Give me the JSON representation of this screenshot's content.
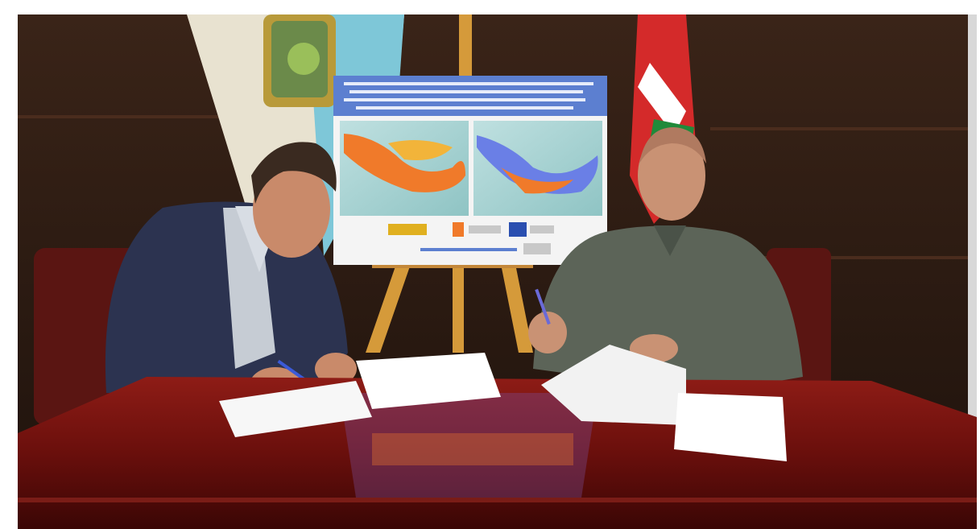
{
  "photo": {
    "subject": "signing-ceremony",
    "colors": {
      "wall": "#2a1a12",
      "table": "#7a1412",
      "poster_header": "#5c7fd0",
      "map_orange": "#f07a2a",
      "map_blue": "#6a7fe6",
      "flag_red": "#d42a2a",
      "flag_green": "#1f8a3a",
      "easel": "#d59a3a"
    }
  }
}
